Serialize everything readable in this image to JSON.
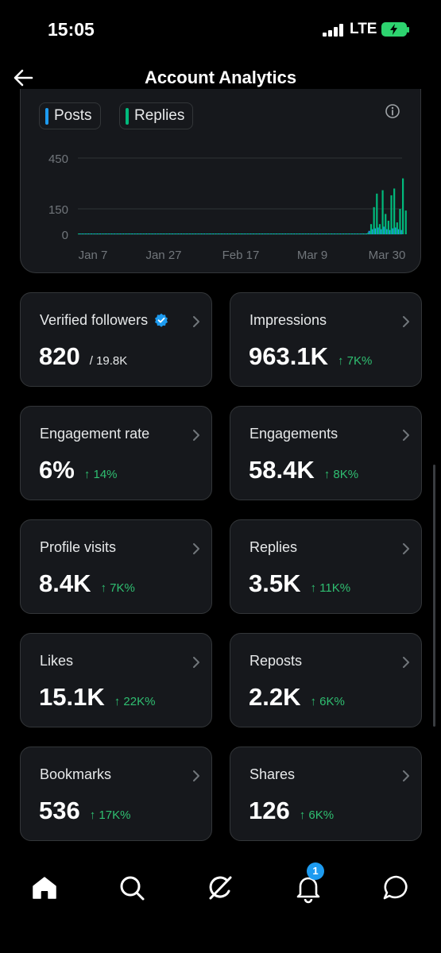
{
  "status_bar": {
    "time": "15:05",
    "network": "LTE"
  },
  "header": {
    "title": "Account Analytics"
  },
  "chart": {
    "legend": [
      {
        "label": "Posts",
        "color": "#1d9bf0"
      },
      {
        "label": "Replies",
        "color": "#00ba7c"
      }
    ]
  },
  "chart_data": {
    "type": "bar",
    "x_tick_labels": [
      "Jan 7",
      "Jan 27",
      "Feb 17",
      "Mar 9",
      "Mar 30"
    ],
    "y_tick_labels": [
      "450",
      "150",
      "0"
    ],
    "ylim": [
      0,
      450
    ],
    "legend_position": "top-left",
    "grid": true,
    "series": [
      {
        "name": "Posts",
        "color": "#1d9bf0",
        "values": [
          0,
          0,
          0,
          0,
          0,
          0,
          0,
          0,
          0,
          0,
          0,
          0,
          0,
          0,
          0,
          0,
          0,
          0,
          0,
          0,
          0,
          0,
          0,
          0,
          0,
          0,
          0,
          0,
          0,
          0,
          0,
          0,
          0,
          0,
          0,
          0,
          0,
          0,
          0,
          0,
          0,
          0,
          0,
          0,
          0,
          0,
          0,
          0,
          0,
          0,
          0,
          0,
          0,
          0,
          0,
          0,
          0,
          0,
          0,
          0,
          0,
          0,
          0,
          0,
          0,
          0,
          0,
          0,
          0,
          0,
          0,
          0,
          0,
          0,
          0,
          0,
          0,
          0,
          0,
          0,
          0,
          0,
          0,
          0,
          0,
          0,
          0,
          0,
          1,
          0,
          0,
          0,
          1,
          0,
          0,
          0,
          0,
          0,
          0,
          0,
          20,
          30,
          35,
          40,
          30,
          45,
          30,
          25,
          35,
          40,
          30,
          25
        ]
      },
      {
        "name": "Replies",
        "color": "#00ba7c",
        "values": [
          2,
          1,
          0,
          0,
          1,
          0,
          0,
          1,
          0,
          0,
          0,
          0,
          0,
          0,
          0,
          0,
          0,
          0,
          0,
          0,
          0,
          0,
          0,
          0,
          0,
          0,
          0,
          0,
          0,
          0,
          0,
          0,
          0,
          0,
          0,
          0,
          0,
          0,
          0,
          0,
          0,
          0,
          0,
          0,
          0,
          0,
          0,
          0,
          0,
          2,
          0,
          0,
          1,
          3,
          0,
          2,
          0,
          0,
          0,
          0,
          0,
          0,
          0,
          0,
          0,
          0,
          0,
          0,
          0,
          0,
          0,
          0,
          0,
          0,
          0,
          0,
          2,
          0,
          0,
          0,
          0,
          0,
          5,
          0,
          0,
          0,
          0,
          0,
          0,
          0,
          0,
          0,
          0,
          0,
          0,
          0,
          0,
          0,
          5,
          0,
          10,
          60,
          160,
          240,
          60,
          260,
          120,
          80,
          230,
          270,
          70,
          150,
          330,
          140
        ]
      }
    ]
  },
  "stats": [
    {
      "label": "Verified followers",
      "value": "820",
      "sub": "/ 19.8K",
      "delta": ""
    },
    {
      "label": "Impressions",
      "value": "963.1K",
      "sub": "",
      "delta": "↑ 7K%"
    },
    {
      "label": "Engagement rate",
      "value": "6%",
      "sub": "",
      "delta": "↑ 14%"
    },
    {
      "label": "Engagements",
      "value": "58.4K",
      "sub": "",
      "delta": "↑ 8K%"
    },
    {
      "label": "Profile visits",
      "value": "8.4K",
      "sub": "",
      "delta": "↑ 7K%"
    },
    {
      "label": "Replies",
      "value": "3.5K",
      "sub": "",
      "delta": "↑ 11K%"
    },
    {
      "label": "Likes",
      "value": "15.1K",
      "sub": "",
      "delta": "↑ 22K%"
    },
    {
      "label": "Reposts",
      "value": "2.2K",
      "sub": "",
      "delta": "↑ 6K%"
    },
    {
      "label": "Bookmarks",
      "value": "536",
      "sub": "",
      "delta": "↑ 17K%"
    },
    {
      "label": "Shares",
      "value": "126",
      "sub": "",
      "delta": "↑ 6K%"
    }
  ],
  "bottom_nav": {
    "items": [
      "home-icon",
      "search-icon",
      "grok-icon",
      "bell-icon",
      "messages-icon"
    ],
    "notification_count": "1"
  }
}
